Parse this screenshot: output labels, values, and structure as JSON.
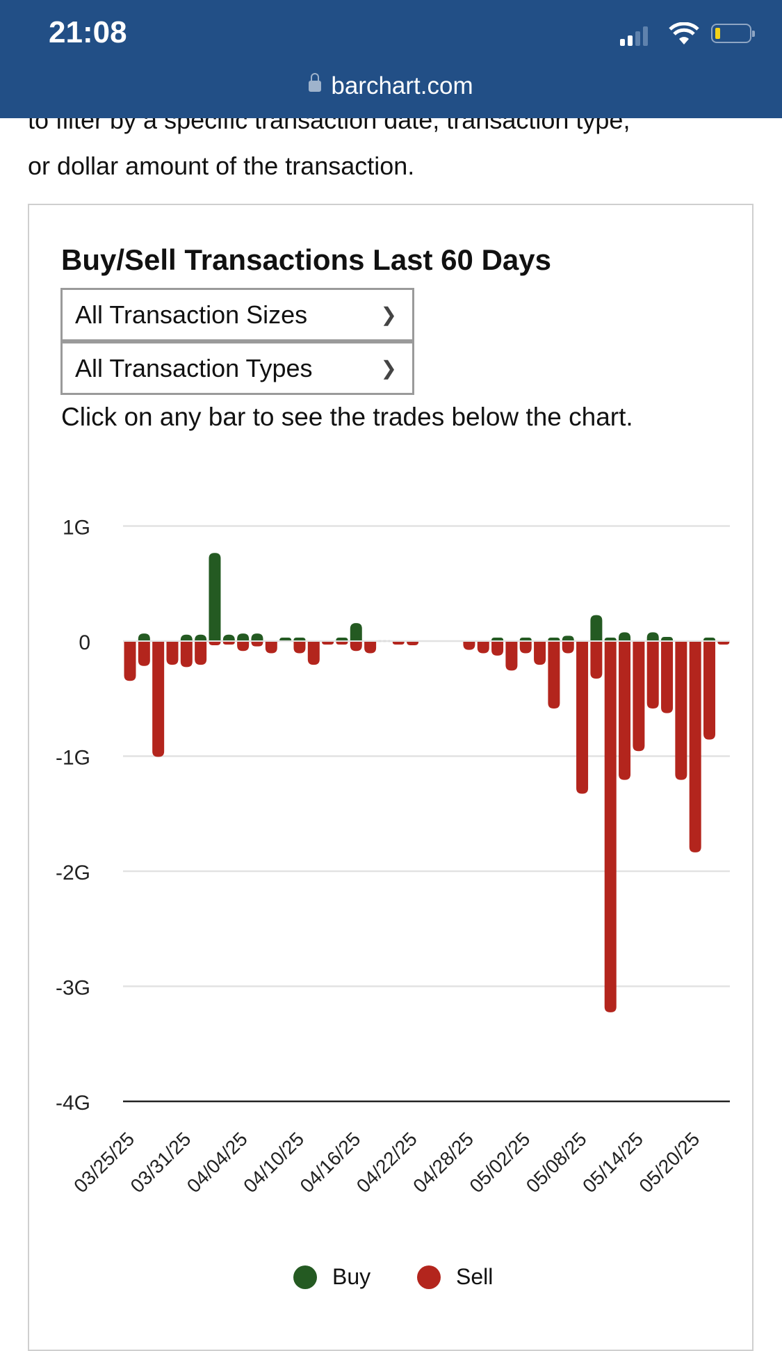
{
  "status_bar": {
    "time": "21:08",
    "url": "barchart.com",
    "icons": [
      "signal-icon",
      "wifi-icon",
      "battery-icon",
      "lock-icon"
    ]
  },
  "intro": {
    "cut_line": "to filter by a specific transaction date, transaction type,",
    "line": "or dollar amount of the transaction."
  },
  "card": {
    "title": "Buy/Sell Transactions Last 60 Days",
    "size_select": "All Transaction Sizes",
    "type_select": "All Transaction Types",
    "hint": "Click on any bar to see the trades below the chart."
  },
  "colors": {
    "header": "#224f86",
    "buy": "#245a22",
    "sell": "#b3251d"
  },
  "chart_data": {
    "type": "bar",
    "title": "Buy/Sell Transactions Last 60 Days",
    "ylim": [
      -4,
      1
    ],
    "y_unit": "G",
    "y_ticks": [
      {
        "v": 1,
        "label": "1G"
      },
      {
        "v": 0,
        "label": "0"
      },
      {
        "v": -1,
        "label": "-1G"
      },
      {
        "v": -2,
        "label": "-2G"
      },
      {
        "v": -3,
        "label": "-3G"
      },
      {
        "v": -4,
        "label": "-4G"
      }
    ],
    "x_tick_labels": [
      {
        "slot": 0,
        "label": "03/25/25"
      },
      {
        "slot": 4,
        "label": "03/31/25"
      },
      {
        "slot": 8,
        "label": "04/04/25"
      },
      {
        "slot": 12,
        "label": "04/10/25"
      },
      {
        "slot": 16,
        "label": "04/16/25"
      },
      {
        "slot": 20,
        "label": "04/22/25"
      },
      {
        "slot": 24,
        "label": "04/28/25"
      },
      {
        "slot": 28,
        "label": "05/02/25"
      },
      {
        "slot": 32,
        "label": "05/08/25"
      },
      {
        "slot": 36,
        "label": "05/14/25"
      },
      {
        "slot": 40,
        "label": "05/20/25"
      }
    ],
    "grid": true,
    "legend": {
      "position": "bottom",
      "entries": [
        "Buy",
        "Sell"
      ]
    },
    "series": [
      {
        "name": "Buy",
        "values": [
          0,
          0.06,
          0,
          0,
          0.05,
          0.05,
          0.76,
          0.05,
          0.06,
          0.06,
          0,
          0.01,
          0.01,
          0,
          0,
          0.01,
          0.15,
          0,
          0,
          0,
          0,
          null,
          null,
          null,
          0,
          0,
          0.02,
          0,
          0.02,
          0,
          0.02,
          0.04,
          0,
          0.22,
          0.02,
          0.07,
          0,
          0.07,
          0.03,
          0,
          0,
          0.02,
          0
        ]
      },
      {
        "name": "Sell",
        "values": [
          -0.34,
          -0.21,
          -1.0,
          -0.2,
          -0.22,
          -0.2,
          -0.03,
          -0.02,
          -0.08,
          -0.04,
          -0.1,
          0,
          -0.1,
          -0.2,
          -0.01,
          -0.01,
          -0.08,
          -0.1,
          0,
          -0.02,
          -0.03,
          null,
          null,
          null,
          -0.07,
          -0.1,
          -0.12,
          -0.25,
          -0.1,
          -0.2,
          -0.58,
          -0.1,
          -1.32,
          -0.32,
          -3.22,
          -1.2,
          -0.95,
          -0.58,
          -0.62,
          -1.2,
          -1.83,
          -0.85,
          -0.01
        ]
      }
    ]
  }
}
